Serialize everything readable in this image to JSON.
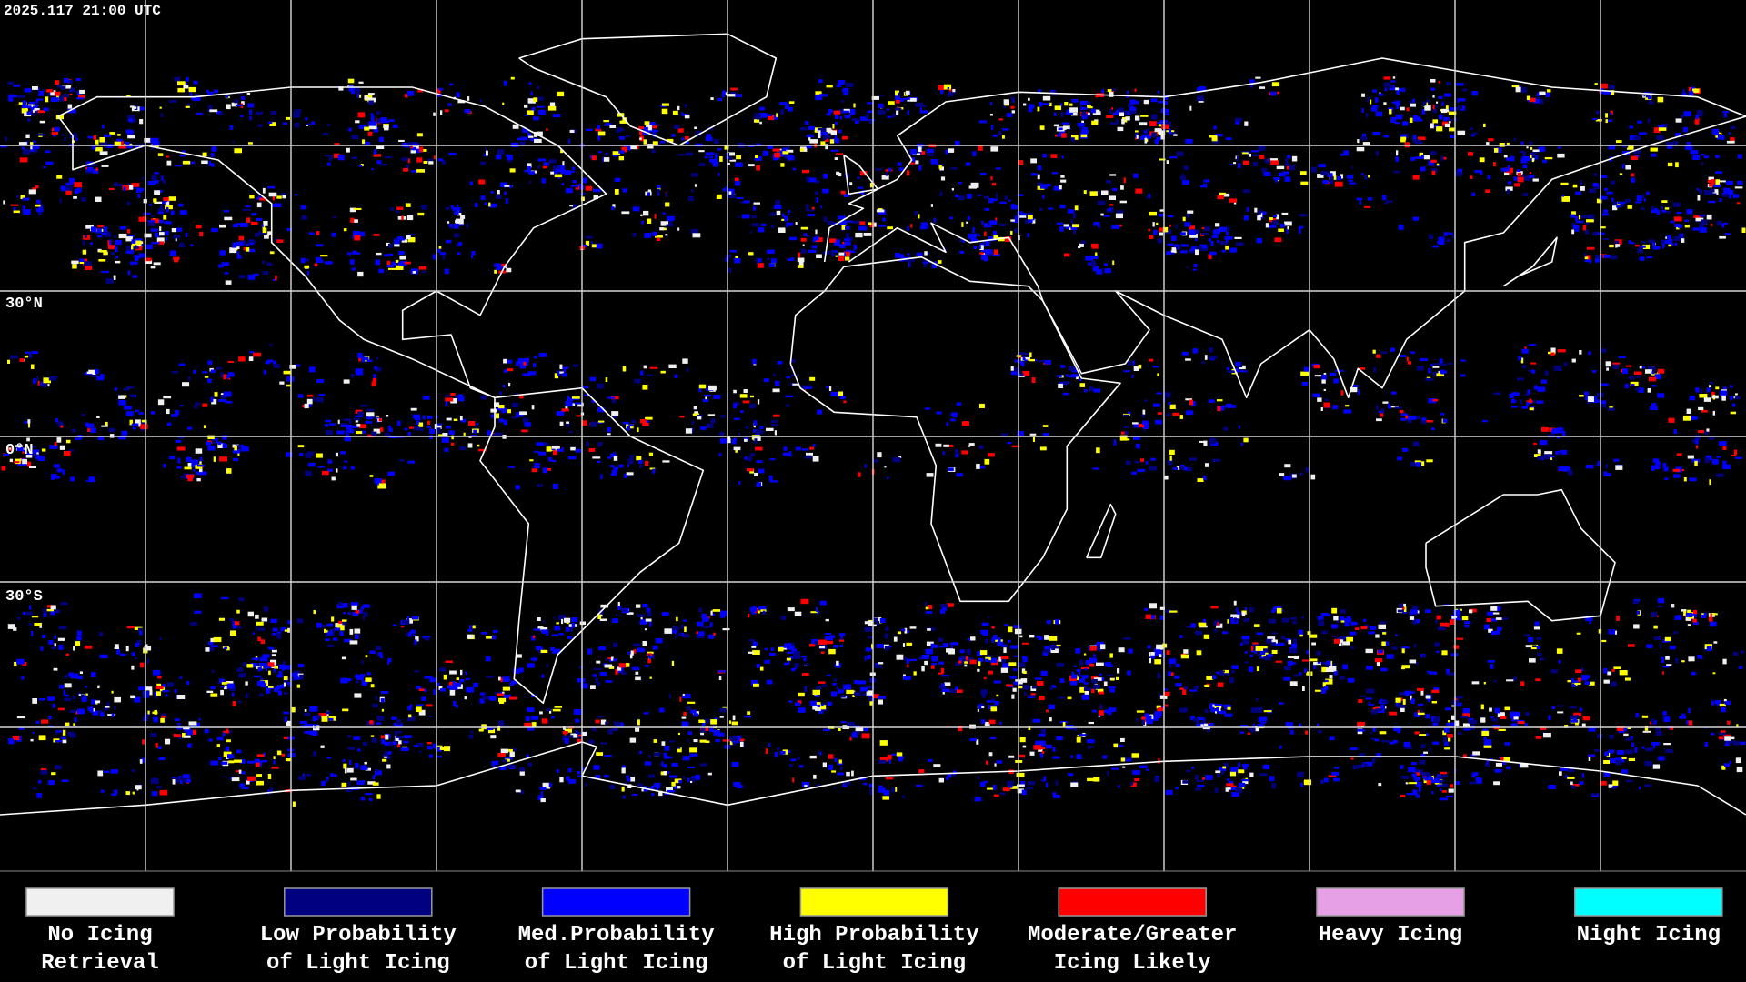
{
  "timestamp": "2025.117 21:00 UTC",
  "latitude_labels": [
    "30°N",
    "0°N",
    "30°S"
  ],
  "legend": [
    {
      "label_lines": [
        "No Icing",
        "Retrieval"
      ],
      "color": "#f0f0f0"
    },
    {
      "label_lines": [
        "Low Probability",
        "of Light Icing"
      ],
      "color": "#000080"
    },
    {
      "label_lines": [
        "Med.Probability",
        "of Light Icing"
      ],
      "color": "#0000ff"
    },
    {
      "label_lines": [
        "High Probability",
        "of Light Icing"
      ],
      "color": "#ffff00"
    },
    {
      "label_lines": [
        "Moderate/Greater",
        "Icing Likely"
      ],
      "color": "#ff0000"
    },
    {
      "label_lines": [
        "Heavy Icing"
      ],
      "color": "#e6a0e6"
    },
    {
      "label_lines": [
        "Night Icing"
      ],
      "color": "#00ffff"
    }
  ]
}
